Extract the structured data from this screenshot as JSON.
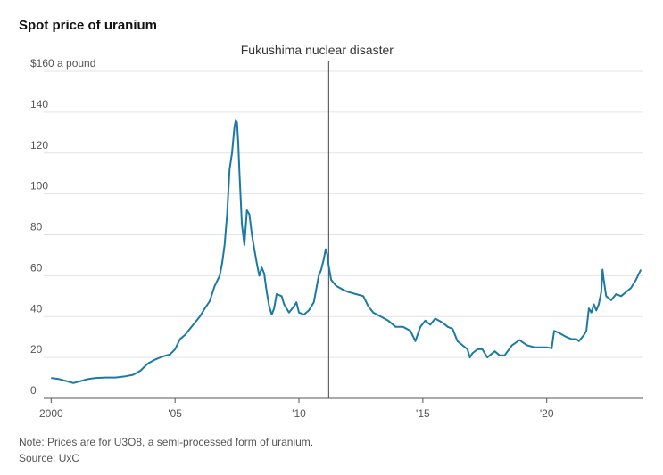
{
  "title": "Spot price of uranium",
  "notes": [
    "Note: Prices are for U3O8, a semi-processed form of uranium.",
    "Source: UxC"
  ],
  "chart_data": {
    "type": "line",
    "title": "Spot price of uranium",
    "xlabel": "",
    "ylabel": "$160 a pound",
    "xlim": [
      1999.7,
      2023.9
    ],
    "ylim": [
      0,
      160
    ],
    "grid": true,
    "line_color": "#1b7aa3",
    "x_ticks": [
      {
        "value": 2000,
        "label": "2000"
      },
      {
        "value": 2005,
        "label": "'05"
      },
      {
        "value": 2010,
        "label": "'10"
      },
      {
        "value": 2015,
        "label": "'15"
      },
      {
        "value": 2020,
        "label": "'20"
      }
    ],
    "y_ticks": [
      {
        "value": 0,
        "label": "0"
      },
      {
        "value": 20,
        "label": "20"
      },
      {
        "value": 40,
        "label": "40"
      },
      {
        "value": 60,
        "label": "60"
      },
      {
        "value": 80,
        "label": "80"
      },
      {
        "value": 100,
        "label": "100"
      },
      {
        "value": 120,
        "label": "120"
      },
      {
        "value": 140,
        "label": "140"
      },
      {
        "value": 160,
        "label": "$160 a pound"
      }
    ],
    "annotation": {
      "x": 2011.2,
      "label": "Fukushima nuclear disaster"
    },
    "series": [
      {
        "x": [
          2000.0,
          2000.3,
          2000.6,
          2000.9,
          2001.2,
          2001.5,
          2001.8,
          2002.2,
          2002.6,
          2003.0,
          2003.3,
          2003.6,
          2003.9,
          2004.2,
          2004.5,
          2004.8,
          2005.0,
          2005.2,
          2005.4,
          2005.6,
          2005.8,
          2006.0,
          2006.2,
          2006.4,
          2006.6,
          2006.8,
          2006.9,
          2007.0,
          2007.1,
          2007.2,
          2007.3,
          2007.4,
          2007.45,
          2007.5,
          2007.55,
          2007.6,
          2007.7,
          2007.8,
          2007.9,
          2008.0,
          2008.1,
          2008.2,
          2008.3,
          2008.4,
          2008.5,
          2008.6,
          2008.7,
          2008.8,
          2008.9,
          2009.0,
          2009.1,
          2009.3,
          2009.4,
          2009.5,
          2009.6,
          2009.8,
          2009.9,
          2010.0,
          2010.2,
          2010.4,
          2010.6,
          2010.8,
          2010.9,
          2011.0,
          2011.08,
          2011.15,
          2011.2,
          2011.3,
          2011.5,
          2011.8,
          2012.0,
          2012.3,
          2012.6,
          2012.8,
          2013.0,
          2013.3,
          2013.6,
          2013.9,
          2014.2,
          2014.5,
          2014.7,
          2014.9,
          2015.1,
          2015.3,
          2015.5,
          2015.8,
          2016.0,
          2016.2,
          2016.4,
          2016.6,
          2016.8,
          2016.9,
          2017.0,
          2017.2,
          2017.4,
          2017.6,
          2017.9,
          2018.1,
          2018.3,
          2018.6,
          2018.9,
          2019.2,
          2019.5,
          2019.8,
          2020.0,
          2020.2,
          2020.3,
          2020.5,
          2020.8,
          2021.0,
          2021.2,
          2021.3,
          2021.5,
          2021.6,
          2021.7,
          2021.8,
          2021.9,
          2022.0,
          2022.1,
          2022.2,
          2022.25,
          2022.3,
          2022.4,
          2022.6,
          2022.8,
          2023.0,
          2023.2,
          2023.4,
          2023.6,
          2023.8
        ],
        "values": [
          10,
          9.5,
          8.5,
          7.5,
          8.5,
          9.5,
          10.0,
          10.2,
          10.2,
          10.8,
          11.5,
          13.5,
          17.0,
          19.0,
          20.5,
          21.5,
          24.0,
          29.0,
          31.0,
          34.0,
          37.0,
          40.0,
          44.0,
          47.5,
          55.0,
          60.0,
          66.0,
          75.0,
          90.0,
          112.0,
          120.0,
          133.0,
          136.0,
          135.0,
          125.0,
          110.0,
          85.0,
          75.0,
          92.0,
          90.0,
          80.0,
          73.0,
          66.0,
          60.0,
          64.0,
          61.0,
          52.0,
          45.0,
          41.0,
          44.0,
          51.0,
          50.0,
          46.0,
          44.0,
          42.0,
          45.0,
          47.0,
          42.0,
          41.0,
          43.0,
          47.0,
          60.0,
          63.0,
          68.0,
          73.0,
          70.0,
          65.0,
          58.0,
          55.0,
          53.0,
          52.0,
          51.0,
          50.0,
          45.0,
          42.0,
          40.0,
          38.0,
          35.0,
          35.0,
          33.0,
          28.0,
          35.0,
          38.0,
          36.0,
          39.0,
          37.0,
          35.0,
          34.0,
          28.0,
          26.0,
          24.0,
          20.0,
          22.0,
          24.0,
          24.0,
          20.0,
          23.0,
          21.0,
          21.0,
          26.0,
          28.5,
          26.0,
          25.0,
          25.0,
          25.0,
          24.5,
          33.0,
          32.0,
          30.0,
          29.0,
          29.0,
          28.0,
          31.0,
          33.0,
          44.0,
          42.0,
          46.0,
          43.0,
          46.0,
          52.0,
          63.0,
          58.0,
          50.0,
          48.0,
          51.0,
          50.0,
          52.0,
          54.0,
          58.0,
          63.0
        ]
      }
    ]
  }
}
